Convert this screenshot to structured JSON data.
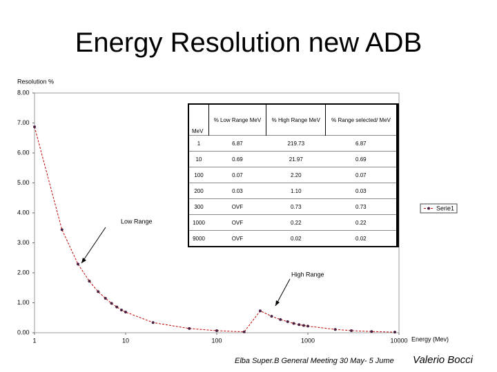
{
  "slide": {
    "title": "Energy Resolution new ADB",
    "footer": "Elba Super.B General Meeting 30 May- 5 Jume",
    "author": "Valerio Bocci"
  },
  "chart_data": {
    "type": "line",
    "y_label": "Resolution %",
    "x_label": "Energy (Mev)",
    "x": [
      1,
      2,
      3,
      4,
      5,
      6,
      7,
      8,
      9,
      10,
      20,
      50,
      100,
      200,
      300,
      400,
      500,
      600,
      700,
      800,
      900,
      1000,
      2000,
      3000,
      5000,
      9000
    ],
    "series": [
      {
        "name": "Serie1",
        "color": "#c00000",
        "marker_color": "#4a2040",
        "values": [
          6.87,
          3.44,
          2.29,
          1.72,
          1.37,
          1.15,
          0.98,
          0.86,
          0.76,
          0.69,
          0.34,
          0.14,
          0.07,
          0.03,
          0.73,
          0.55,
          0.44,
          0.37,
          0.31,
          0.27,
          0.24,
          0.22,
          0.11,
          0.07,
          0.04,
          0.02
        ]
      }
    ],
    "xscale": "log",
    "xlim": [
      1,
      10000
    ],
    "xticks": [
      1,
      10,
      100,
      1000,
      10000
    ],
    "ylim": [
      0,
      8
    ],
    "yticks": [
      {
        "value": 0,
        "label": "0.00"
      },
      {
        "value": 1,
        "label": "1.00"
      },
      {
        "value": 2,
        "label": "2.00"
      },
      {
        "value": 3,
        "label": "3.00"
      },
      {
        "value": 4,
        "label": "4.00"
      },
      {
        "value": 5,
        "label": "5.00"
      },
      {
        "value": 6,
        "label": "6.00"
      },
      {
        "value": 7,
        "label": "7.00"
      },
      {
        "value": 8,
        "label": "8.00"
      }
    ],
    "grid": false,
    "legend": "right",
    "annotations": [
      "Low Range",
      "High Range"
    ]
  },
  "table": {
    "header": [
      "MeV",
      "% Low Range MeV",
      "% High Range MeV",
      "% Range selected/ MeV"
    ],
    "rows": [
      [
        "1",
        "6.87",
        "219.73",
        "6.87"
      ],
      [
        "10",
        "0.69",
        "21.97",
        "0.69"
      ],
      [
        "100",
        "0.07",
        "2.20",
        "0.07"
      ],
      [
        "200",
        "0.03",
        "1.10",
        "0.03"
      ],
      [
        "300",
        "OVF",
        "0.73",
        "0.73"
      ],
      [
        "1000",
        "OVF",
        "0.22",
        "0.22"
      ],
      [
        "9000",
        "OVF",
        "0.02",
        "0.02"
      ]
    ]
  }
}
